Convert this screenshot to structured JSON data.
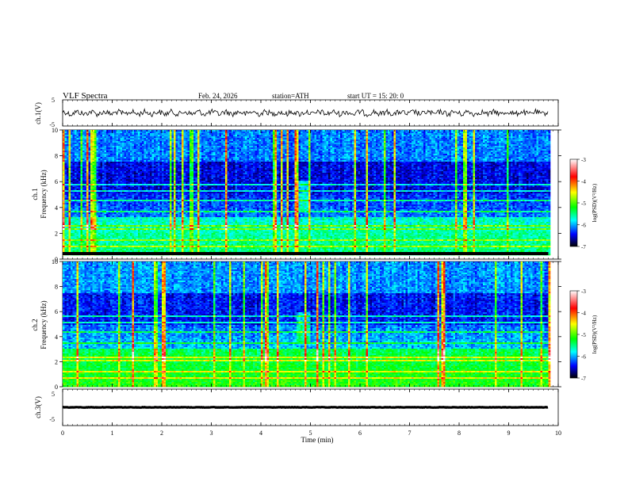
{
  "header": {
    "title": "VLF  Spectra",
    "date": "Feb. 24, 2026",
    "station": "station=ATH",
    "start": "start  UT  =    15: 20: 0"
  },
  "chart_data": [
    {
      "type": "line",
      "panel": "ch1-waveform",
      "ylabel": "ch.1(V)",
      "ylim": [
        -5,
        5
      ],
      "yticks": [
        "5",
        "-5"
      ],
      "xlim": [
        0,
        10
      ],
      "line_color": "#000000"
    },
    {
      "type": "heatmap",
      "panel": "ch1-spectrogram",
      "ylabel": "ch.1\nFrequency  (kHz)",
      "ylabel_lines": [
        "ch.1",
        "Frequency  (kHz)"
      ],
      "ylim": [
        0,
        10
      ],
      "yticks": [
        "0",
        "2",
        "4",
        "6",
        "8",
        "10"
      ],
      "xlim": [
        0,
        10
      ],
      "data_end_min": 9.8,
      "colorbar": {
        "range": [
          -7,
          -3
        ],
        "ticks": [
          "-3",
          "-4",
          "-5",
          "-6",
          "-7"
        ],
        "label": "log(PSD)(V²/Hz)"
      }
    },
    {
      "type": "heatmap",
      "panel": "ch2-spectrogram",
      "ylabel": "ch.2\nFrequency  (kHz)",
      "ylabel_lines": [
        "ch.2",
        "Frequency  (kHz)"
      ],
      "ylim": [
        0,
        10
      ],
      "yticks": [
        "0",
        "2",
        "4",
        "6",
        "8",
        "10"
      ],
      "xlim": [
        0,
        10
      ],
      "data_end_min": 9.8,
      "colorbar": {
        "range": [
          -7,
          -3
        ],
        "ticks": [
          "-3",
          "-4",
          "-5",
          "-6",
          "-7"
        ],
        "label": "log(PSD)(V²/Hz)"
      }
    },
    {
      "type": "line",
      "panel": "ch3-waveform",
      "ylabel": "ch.3(V)",
      "ylim": [
        -5,
        5
      ],
      "yticks": [
        "5",
        "-5"
      ],
      "xlim": [
        0,
        10
      ],
      "xticks": [
        "0",
        "1",
        "2",
        "3",
        "4",
        "5",
        "6",
        "7",
        "8",
        "9",
        "10"
      ],
      "xlabel": "Time  (min)",
      "line_color": "#000000"
    }
  ],
  "colorscale": [
    "#ffffff",
    "#ff0000",
    "#ffff00",
    "#00ff00",
    "#00ffff",
    "#0000ff",
    "#000000"
  ]
}
